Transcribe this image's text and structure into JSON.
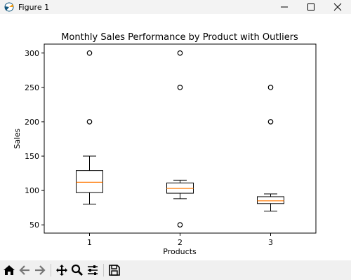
{
  "window": {
    "title": "Figure 1",
    "controls": [
      "minimize-icon",
      "maximize-icon",
      "close-icon"
    ]
  },
  "toolbar": {
    "buttons": [
      "home-icon",
      "back-icon",
      "forward-icon",
      "pan-icon",
      "zoom-icon",
      "configure-icon",
      "save-icon"
    ]
  },
  "chart_data": {
    "type": "box",
    "title": "Monthly Sales Performance by Product with Outliers",
    "xlabel": "Products",
    "ylabel": "Sales",
    "categories": [
      "1",
      "2",
      "3"
    ],
    "ylim": [
      38,
      313
    ],
    "yticks": [
      50,
      100,
      150,
      200,
      250,
      300
    ],
    "boxes": [
      {
        "name": "1",
        "whisker_low": 80,
        "q1": 97,
        "median": 112,
        "q3": 129,
        "whisker_high": 150,
        "outliers": [
          200,
          300
        ]
      },
      {
        "name": "2",
        "whisker_low": 88,
        "q1": 96,
        "median": 103,
        "q3": 111,
        "whisker_high": 115,
        "outliers": [
          50,
          250,
          300
        ]
      },
      {
        "name": "3",
        "whisker_low": 70,
        "q1": 81,
        "median": 85,
        "q3": 91,
        "whisker_high": 95,
        "outliers": [
          200,
          250
        ]
      }
    ],
    "colors": {
      "box": "#000000",
      "median": "#ff7f0e",
      "outlier": "#000000"
    },
    "grid": false
  }
}
